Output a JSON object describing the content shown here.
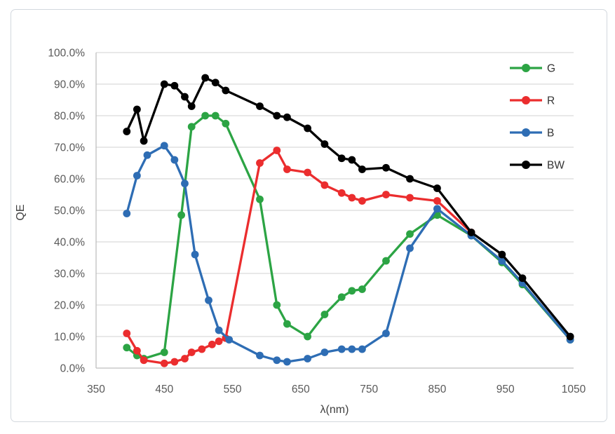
{
  "chart_data": {
    "type": "line",
    "title": "",
    "xlabel": "λ(nm)",
    "ylabel": "QE",
    "xlim": [
      350,
      1050
    ],
    "ylim": [
      0,
      100
    ],
    "grid": true,
    "legend_position": "right-inside",
    "x_ticks": [
      350,
      450,
      550,
      650,
      750,
      850,
      950,
      1050
    ],
    "x_tick_labels": [
      "350",
      "450",
      "550",
      "650",
      "750",
      "850",
      "950",
      "1050"
    ],
    "y_ticks": [
      0,
      10,
      20,
      30,
      40,
      50,
      60,
      70,
      80,
      90,
      100
    ],
    "y_tick_labels": [
      "0.0%",
      "10.0%",
      "20.0%",
      "30.0%",
      "40.0%",
      "50.0%",
      "60.0%",
      "70.0%",
      "80.0%",
      "90.0%",
      "100.0%"
    ],
    "legend_order": [
      "G",
      "R",
      "B",
      "BW"
    ],
    "series": [
      {
        "name": "G",
        "color": "#2CA444",
        "points": [
          [
            395,
            6.5
          ],
          [
            410,
            4
          ],
          [
            420,
            3
          ],
          [
            450,
            5
          ],
          [
            475,
            48.5
          ],
          [
            490,
            76.5
          ],
          [
            510,
            80
          ],
          [
            525,
            80
          ],
          [
            540,
            77.5
          ],
          [
            590,
            53.5
          ],
          [
            615,
            20
          ],
          [
            630,
            14
          ],
          [
            660,
            10
          ],
          [
            685,
            17
          ],
          [
            710,
            22.5
          ],
          [
            725,
            24.5
          ],
          [
            740,
            25
          ],
          [
            775,
            34
          ],
          [
            810,
            42.5
          ],
          [
            850,
            48.5
          ],
          [
            900,
            42
          ],
          [
            945,
            33.5
          ],
          [
            975,
            26.5
          ],
          [
            1045,
            9
          ]
        ]
      },
      {
        "name": "R",
        "color": "#EB2D2E",
        "points": [
          [
            395,
            11
          ],
          [
            410,
            5.5
          ],
          [
            420,
            2.5
          ],
          [
            450,
            1.5
          ],
          [
            465,
            2
          ],
          [
            480,
            3
          ],
          [
            490,
            5
          ],
          [
            505,
            6
          ],
          [
            520,
            7.5
          ],
          [
            530,
            8.5
          ],
          [
            540,
            9.5
          ],
          [
            590,
            65
          ],
          [
            615,
            69
          ],
          [
            630,
            63
          ],
          [
            660,
            62
          ],
          [
            685,
            58
          ],
          [
            710,
            55.5
          ],
          [
            725,
            54
          ],
          [
            740,
            53
          ],
          [
            775,
            55
          ],
          [
            810,
            54
          ],
          [
            850,
            53
          ],
          [
            900,
            43
          ]
        ]
      },
      {
        "name": "B",
        "color": "#2E6DB4",
        "points": [
          [
            395,
            49
          ],
          [
            410,
            61
          ],
          [
            425,
            67.5
          ],
          [
            450,
            70.5
          ],
          [
            465,
            66
          ],
          [
            480,
            58.5
          ],
          [
            495,
            36
          ],
          [
            515,
            21.5
          ],
          [
            530,
            12
          ],
          [
            545,
            9
          ],
          [
            590,
            4
          ],
          [
            615,
            2.5
          ],
          [
            630,
            2
          ],
          [
            660,
            3
          ],
          [
            685,
            5
          ],
          [
            710,
            6
          ],
          [
            725,
            6
          ],
          [
            740,
            6
          ],
          [
            775,
            11
          ],
          [
            810,
            38
          ],
          [
            850,
            50.5
          ],
          [
            900,
            42
          ],
          [
            945,
            34
          ],
          [
            975,
            27
          ],
          [
            1045,
            9
          ]
        ]
      },
      {
        "name": "BW",
        "color": "#000000",
        "points": [
          [
            395,
            75
          ],
          [
            410,
            82
          ],
          [
            420,
            72
          ],
          [
            450,
            90
          ],
          [
            465,
            89.5
          ],
          [
            480,
            86
          ],
          [
            490,
            83
          ],
          [
            510,
            92
          ],
          [
            525,
            90.5
          ],
          [
            540,
            88
          ],
          [
            590,
            83
          ],
          [
            615,
            80
          ],
          [
            630,
            79.5
          ],
          [
            660,
            76
          ],
          [
            685,
            71
          ],
          [
            710,
            66.5
          ],
          [
            725,
            66
          ],
          [
            740,
            63
          ],
          [
            775,
            63.5
          ],
          [
            810,
            60
          ],
          [
            850,
            57
          ],
          [
            900,
            43
          ],
          [
            945,
            36
          ],
          [
            975,
            28.5
          ],
          [
            1045,
            10
          ]
        ]
      }
    ]
  },
  "colors": {
    "background": "#ffffff",
    "frame_border": "#d3d8de",
    "gridline": "#d9d9d9",
    "axis_line": "#bfbfbf",
    "tick_label": "#595959",
    "axis_title": "#404040",
    "legend_label": "#333333"
  },
  "layout_text": {}
}
